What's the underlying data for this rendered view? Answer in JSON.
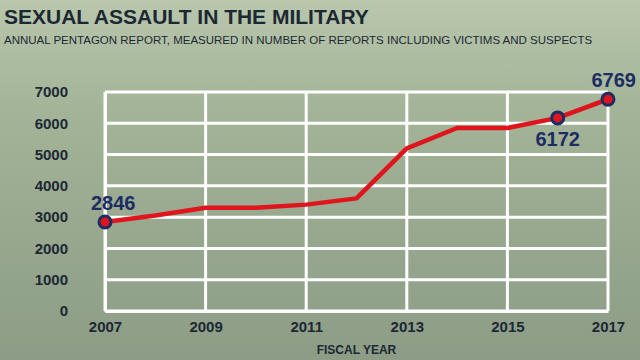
{
  "chart_data": {
    "type": "line",
    "title": "SEXUAL ASSAULT IN THE MILITARY",
    "subtitle": "ANNUAL PENTAGON REPORT, MEASURED IN NUMBER OF REPORTS INCLUDING VICTIMS AND SUSPECTS",
    "x_label": "FISCAL YEAR",
    "x": [
      2007,
      2008,
      2009,
      2010,
      2011,
      2012,
      2013,
      2014,
      2015,
      2016,
      2017
    ],
    "values": [
      2846,
      3050,
      3300,
      3300,
      3400,
      3600,
      5200,
      5850,
      5850,
      6172,
      6769
    ],
    "value_labels": [
      "2846",
      null,
      null,
      null,
      null,
      null,
      null,
      null,
      null,
      "6172",
      "6769"
    ],
    "color": "#e0141c",
    "marker": "circle",
    "data_labels": true,
    "grid": true,
    "xlim": [
      2007,
      2017
    ],
    "xticks": [
      2007,
      2009,
      2011,
      2013,
      2015,
      2017
    ],
    "ylim": [
      0,
      7000
    ],
    "yticks": [
      0,
      1000,
      2000,
      3000,
      4000,
      5000,
      6000,
      7000
    ]
  }
}
